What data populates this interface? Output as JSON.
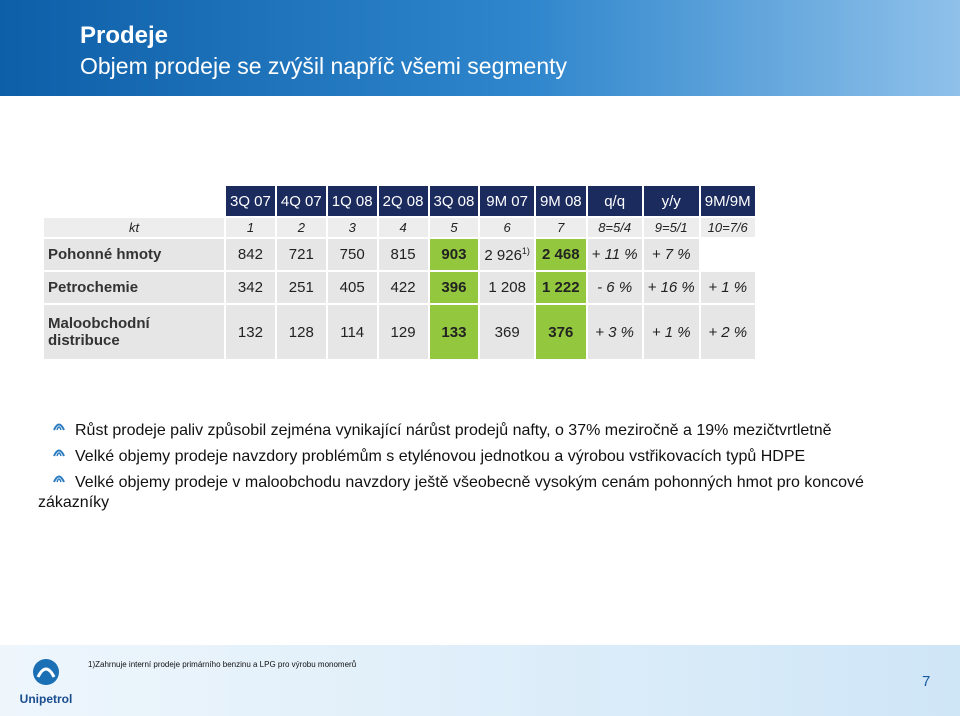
{
  "header": {
    "title": "Prodeje",
    "subtitle": "Objem prodeje se zvýšil napříč všemi segmenty"
  },
  "table": {
    "columns": [
      "3Q 07",
      "4Q 07",
      "1Q 08",
      "2Q 08",
      "3Q 08",
      "9M 07",
      "9M 08",
      "q/q",
      "y/y",
      "9M/9M"
    ],
    "index": [
      "kt",
      "1",
      "2",
      "3",
      "4",
      "5",
      "6",
      "7",
      "8=5/4",
      "9=5/1",
      "10=7/6"
    ],
    "rows": [
      [
        "Pohonné hmoty",
        "842",
        "721",
        "750",
        "815",
        "903",
        {
          "text": "2 926",
          "sup": "1)"
        },
        "2 468",
        "+ 11 %",
        "+ 7 %",
        null
      ],
      [
        "Petrochemie",
        "342",
        "251",
        "405",
        "422",
        "396",
        "1 208",
        "1 222",
        "- 6 %",
        "+ 16 %",
        "+ 1 %"
      ],
      [
        "Maloobchodní distribuce",
        "132",
        "128",
        "114",
        "129",
        "133",
        "369",
        "376",
        "+ 3 %",
        "+ 1 %",
        "+ 2 %"
      ]
    ]
  },
  "bullets": [
    "Růst prodeje paliv způsobil zejména vynikající nárůst prodejů nafty, o 37% meziročně a 19% mezičtvrtletně",
    "Velké objemy prodeje navzdory problémům s etylénovou jednotkou a výrobou vstřikovacích typů HDPE",
    "Velké objemy prodeje v maloobchodu navzdory ještě všeobecně vysokým cenám pohonných hmot pro koncové zákazníky"
  ],
  "footer": {
    "footnote": "1)Zahrnuje interní prodeje primárního benzinu a LPG pro výrobu monomerů",
    "logo": "Unipetrol",
    "page": "7"
  }
}
